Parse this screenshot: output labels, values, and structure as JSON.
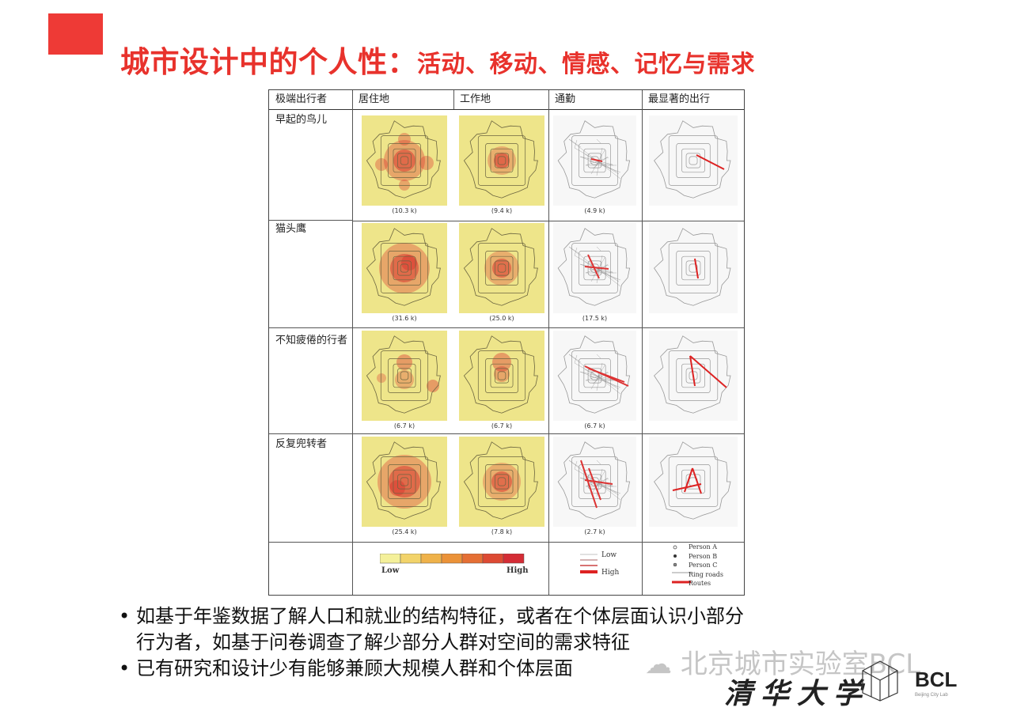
{
  "slide": {
    "title_main": "城市设计中的个人性：",
    "title_sub": "活动、移动、情感、记忆与需求"
  },
  "figure": {
    "headers": [
      "极端出行者",
      "居住地",
      "工作地",
      "通勤",
      "最显著的出行"
    ],
    "rows": [
      {
        "label": "早起的鸟儿",
        "counts": [
          "(10.3 k)",
          "(9.4 k)",
          "(4.9 k)"
        ]
      },
      {
        "label": "猫头鹰",
        "counts": [
          "(31.6 k)",
          "(25.0 k)",
          "(17.5 k)"
        ]
      },
      {
        "label": "不知疲倦的行者",
        "counts": [
          "(6.7 k)",
          "(6.7 k)",
          "(6.7 k)"
        ]
      },
      {
        "label": "反复兜转者",
        "counts": [
          "(25.4 k)",
          "(7.8 k)",
          "(2.7 k)"
        ]
      }
    ],
    "legend_density": {
      "low": "Low",
      "high": "High"
    },
    "legend_commute": {
      "low": "Low",
      "high": "High"
    },
    "legend_trips": [
      "Person A",
      "Person B",
      "Person C",
      "Ring roads",
      "Routes"
    ]
  },
  "bullets": [
    {
      "line1": "如基于年鉴数据了解人口和就业的结构特征，或者在个体层面认识小部分",
      "line2": "行为者，如基于问卷调查了解少部分人群对空间的需求特征"
    },
    {
      "line1": "已有研究和设计少有能够兼顾大规模人群和个体层面"
    }
  ],
  "branding": {
    "watermark": "北京城市实验室BCL",
    "university": "清华大学",
    "lab_logo": "BCL",
    "lab_subtitle": "Beijing City Lab"
  },
  "colors": {
    "accent": "#e8322c",
    "square": "#ee3a36",
    "map_bg": "#eee58a",
    "heat": "#d9302c"
  }
}
